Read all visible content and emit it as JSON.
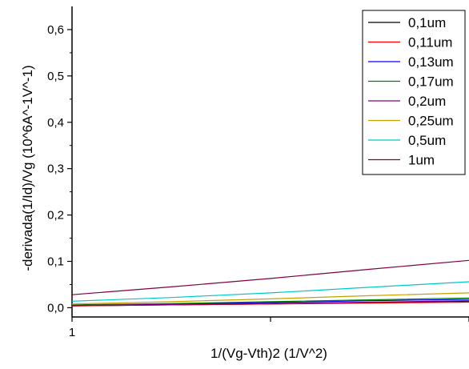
{
  "chart_data": {
    "type": "line",
    "xlabel": "1/(Vg-Vth)2 (1/V^2)",
    "ylabel": "-derivada(1/Id)/Vg (10^6A^-1V^-1)",
    "x_tick_labels": [
      "1"
    ],
    "ylim": [
      -0.02,
      0.65
    ],
    "xlim": [
      1,
      3
    ],
    "yticks": [
      0.0,
      0.1,
      0.2,
      0.3,
      0.4,
      0.5,
      0.6
    ],
    "ytick_labels": [
      "0,0",
      "0,1",
      "0,2",
      "0,3",
      "0,4",
      "0,5",
      "0,6"
    ],
    "legend_position": "top-right",
    "series": [
      {
        "name": "0,1um",
        "color": "#000000",
        "x": [
          1,
          1.5,
          2,
          2.5,
          3
        ],
        "y": [
          0.004,
          0.006,
          0.008,
          0.011,
          0.014
        ]
      },
      {
        "name": "0,11um",
        "color": "#ff0000",
        "x": [
          1,
          1.5,
          2,
          2.5,
          3
        ],
        "y": [
          0.004,
          0.006,
          0.008,
          0.01,
          0.012
        ]
      },
      {
        "name": "0,13um",
        "color": "#0000ff",
        "x": [
          1,
          1.5,
          2,
          2.5,
          3
        ],
        "y": [
          0.005,
          0.008,
          0.011,
          0.015,
          0.018
        ]
      },
      {
        "name": "0,17um",
        "color": "#008000",
        "x": [
          1,
          1.5,
          2,
          2.5,
          3
        ],
        "y": [
          0.006,
          0.009,
          0.013,
          0.017,
          0.021
        ]
      },
      {
        "name": "0,2um",
        "color": "#800080",
        "x": [
          1,
          1.5,
          2,
          2.5,
          3
        ],
        "y": [
          0.005,
          0.007,
          0.009,
          0.012,
          0.015
        ]
      },
      {
        "name": "0,25um",
        "color": "#c8a000",
        "x": [
          1,
          1.5,
          2,
          2.5,
          3
        ],
        "y": [
          0.008,
          0.013,
          0.019,
          0.026,
          0.032
        ]
      },
      {
        "name": "0,5um",
        "color": "#00c8c8",
        "x": [
          1,
          1.5,
          2,
          2.5,
          3
        ],
        "y": [
          0.014,
          0.022,
          0.032,
          0.044,
          0.056
        ]
      },
      {
        "name": "1um",
        "color": "#800040",
        "x": [
          1,
          1.5,
          2,
          2.5,
          3
        ],
        "y": [
          0.028,
          0.045,
          0.063,
          0.083,
          0.102
        ]
      }
    ]
  }
}
